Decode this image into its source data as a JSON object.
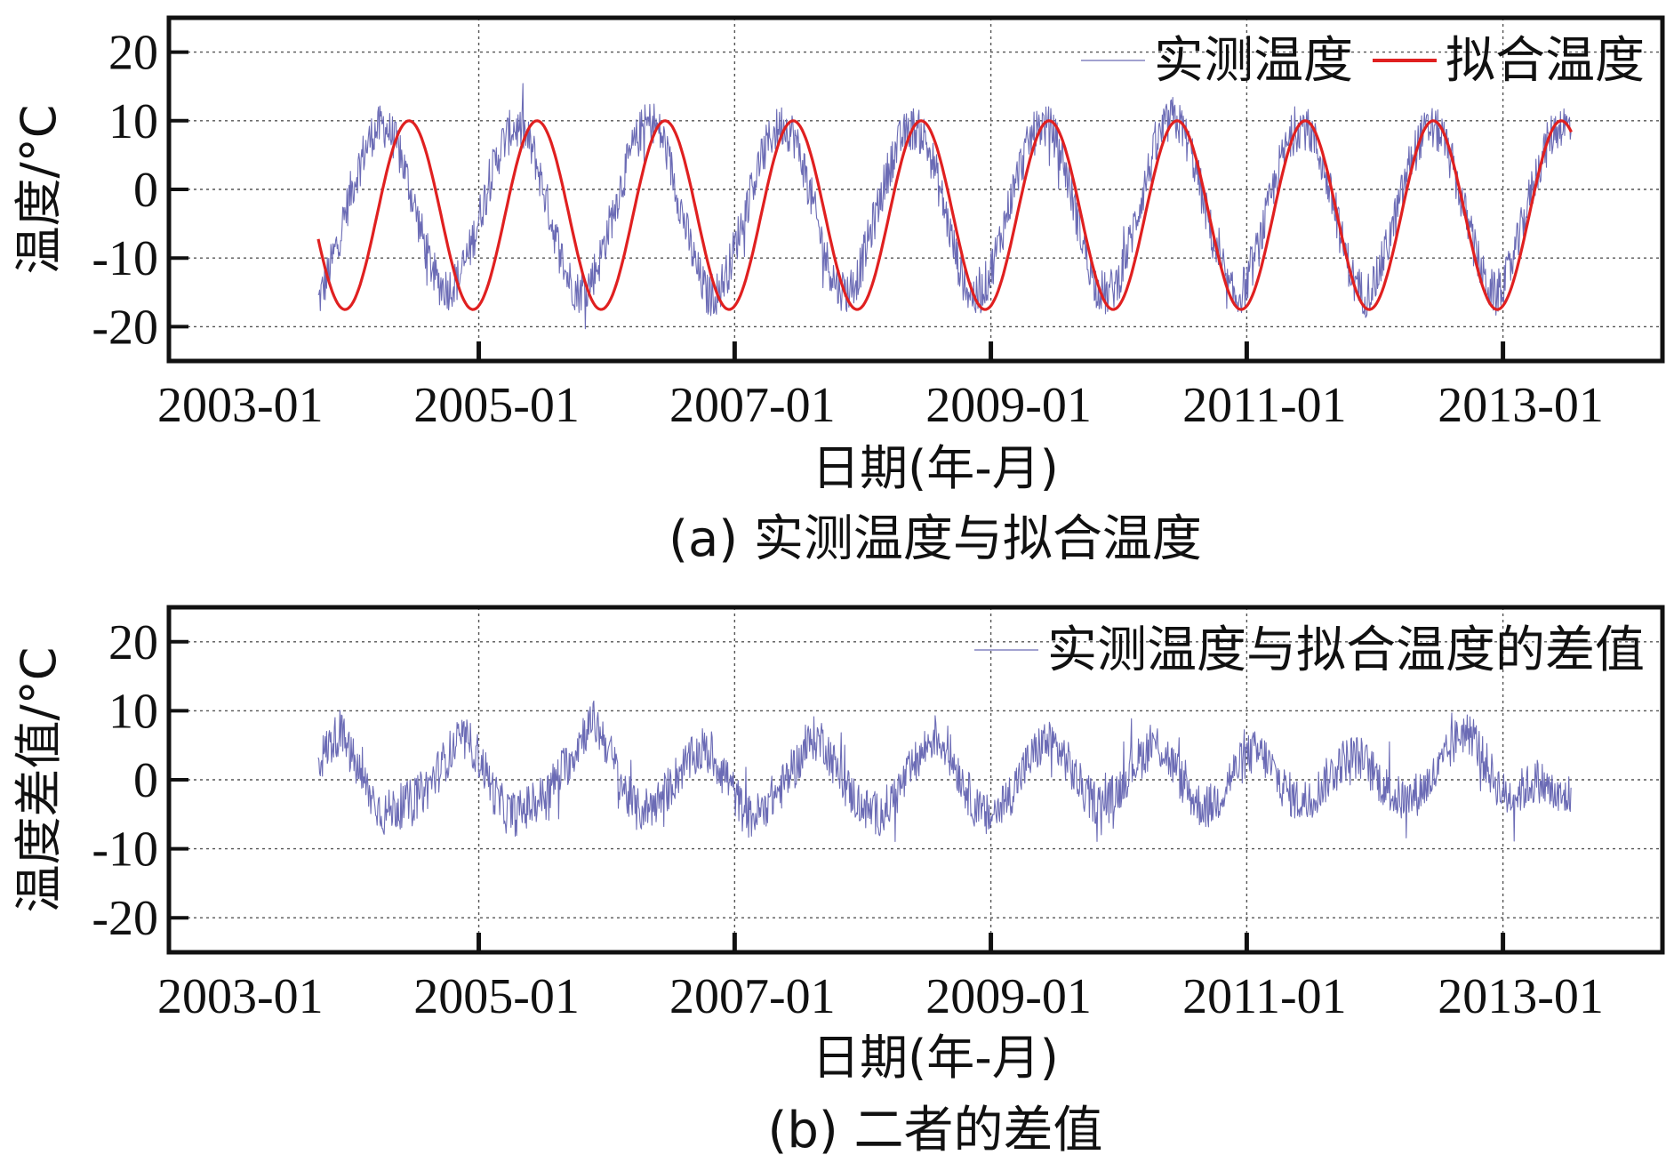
{
  "chart_data": [
    {
      "type": "line",
      "caption": "(a) 实测温度与拟合温度",
      "xlabel": "日期(年-月)",
      "ylabel": "温度/°C",
      "xlim": [
        "2002-08-01",
        "2014-04-01"
      ],
      "ylim": [
        -25,
        25
      ],
      "x_ticks": [
        "2003-01",
        "2005-01",
        "2007-01",
        "2009-01",
        "2011-01",
        "2013-01"
      ],
      "y_ticks": [
        20,
        10,
        0,
        -10,
        -20
      ],
      "grid": true,
      "legend_position": "top-right",
      "series": [
        {
          "name": "实测温度",
          "color": "#6b6bb5",
          "style": "noisy-daily",
          "date_range": [
            "2003-10-01",
            "2013-07-15"
          ],
          "sample_every_months": 1,
          "values": [
            -16.4,
            -12.0,
            -6.5,
            -0.5,
            4.5,
            8.0,
            9.5,
            7.5,
            3.0,
            -3.0,
            -9.0,
            -13.5,
            -14.5,
            -13.0,
            -9.0,
            -3.5,
            2.0,
            6.5,
            9.0,
            8.5,
            5.0,
            -1.0,
            -7.0,
            -12.5,
            -15.0,
            -14.0,
            -10.5,
            -5.0,
            0.5,
            5.5,
            9.0,
            10.0,
            7.0,
            1.0,
            -5.5,
            -11.5,
            -15.5,
            -15.0,
            -11.5,
            -6.0,
            -0.5,
            4.5,
            8.0,
            9.5,
            8.0,
            3.0,
            -3.5,
            -10.0,
            -14.0,
            -15.0,
            -12.5,
            -7.0,
            -1.5,
            4.0,
            7.5,
            9.0,
            8.0,
            3.5,
            -3.0,
            -9.5,
            -14.5,
            -16.0,
            -13.0,
            -8.0,
            -2.0,
            3.5,
            7.5,
            9.5,
            8.5,
            4.0,
            -2.5,
            -9.0,
            -14.0,
            -15.5,
            -13.5,
            -8.5,
            -2.5,
            3.5,
            8.0,
            10.5,
            9.0,
            4.5,
            -2.0,
            -8.5,
            -14.0,
            -16.0,
            -13.5,
            -8.5,
            -2.5,
            3.5,
            7.5,
            9.5,
            8.0,
            3.5,
            -2.5,
            -9.0,
            -14.0,
            -15.5,
            -13.0,
            -8.0,
            -2.5,
            3.5,
            7.5,
            9.0,
            8.0,
            3.5,
            -2.5,
            -8.5,
            -13.5,
            -15.5,
            -13.0,
            -8.0,
            -2.0,
            3.5,
            7.5,
            9.5,
            9.0
          ]
        },
        {
          "name": "拟合温度",
          "color": "#e02020",
          "style": "smooth",
          "date_range": [
            "2003-10-01",
            "2013-07-15"
          ],
          "model": "T = -3.75 + 13.75·cos(2π(t − t_peak)/1 yr)",
          "mean": -3.75,
          "amplitude": 13.75,
          "peak_month": "06"
        }
      ]
    },
    {
      "type": "line",
      "caption": "(b) 二者的差值",
      "xlabel": "日期(年-月)",
      "ylabel": "温度差值/°C",
      "xlim": [
        "2002-08-01",
        "2014-04-01"
      ],
      "ylim": [
        -25,
        25
      ],
      "x_ticks": [
        "2003-01",
        "2005-01",
        "2007-01",
        "2009-01",
        "2011-01",
        "2013-01"
      ],
      "y_ticks": [
        20,
        10,
        0,
        -10,
        -20
      ],
      "grid": true,
      "legend_position": "top-right",
      "series": [
        {
          "name": "实测温度与拟合温度的差值",
          "color": "#6b6bb5",
          "style": "noisy-daily",
          "date_range": [
            "2003-10-01",
            "2013-07-15"
          ],
          "sample_every_months": 1,
          "values": [
            2.5,
            5.0,
            7.0,
            3.5,
            0.0,
            -3.0,
            -5.0,
            -4.0,
            -3.5,
            -2.5,
            -1.0,
            1.5,
            4.0,
            6.0,
            5.0,
            2.0,
            -2.0,
            -4.5,
            -5.0,
            -4.0,
            -3.0,
            -1.5,
            1.0,
            3.0,
            6.5,
            8.5,
            6.0,
            2.0,
            -2.0,
            -4.5,
            -4.0,
            -3.0,
            -1.0,
            1.5,
            3.0,
            4.5,
            3.0,
            1.0,
            -2.5,
            -5.5,
            -5.0,
            -3.0,
            -1.5,
            1.0,
            3.5,
            6.0,
            5.5,
            2.0,
            -1.0,
            -3.0,
            -4.5,
            -5.0,
            -3.5,
            -1.0,
            1.5,
            4.0,
            6.5,
            5.0,
            2.0,
            -1.5,
            -4.5,
            -5.5,
            -4.0,
            -2.0,
            1.0,
            3.5,
            5.5,
            5.0,
            3.0,
            0.0,
            -2.5,
            -3.5,
            -3.0,
            -1.0,
            2.0,
            3.5,
            5.5,
            4.0,
            1.5,
            -1.5,
            -3.5,
            -4.0,
            -2.5,
            0.5,
            2.5,
            4.0,
            3.5,
            1.0,
            -1.5,
            -3.0,
            -3.0,
            -1.5,
            0.5,
            2.5,
            3.5,
            3.0,
            1.0,
            -1.0,
            -2.5,
            -3.0,
            -2.0,
            -0.5,
            1.5,
            4.5,
            7.0,
            6.5,
            3.0,
            0.0,
            -2.5,
            -2.0,
            -1.0,
            0.0,
            -1.5,
            -3.0,
            -2.0
          ]
        }
      ]
    }
  ]
}
